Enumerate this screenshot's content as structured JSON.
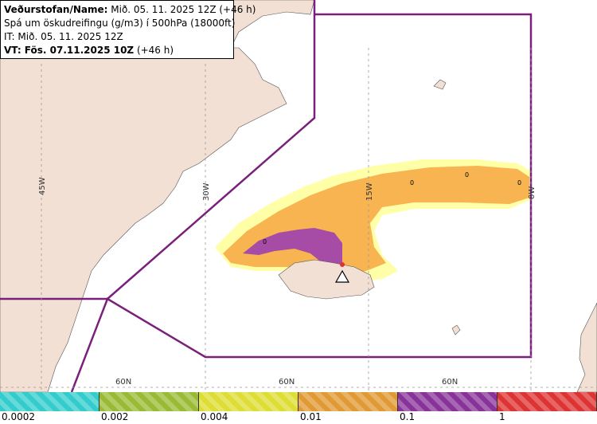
{
  "header": {
    "line1_bold": "Veðurstofan/Name:",
    "line1_rest": " Mið. 05. 11. 2025 12Z (+46 h)",
    "line2": "Spá um öskudreifingu (g/m3) í 500hPa (18000ft)",
    "line3": "IT: Mið. 05. 11. 2025 12Z",
    "line4_bold": "VT: Fös. 07.11.2025 10Z",
    "line4_rest": " (+46 h)"
  },
  "map": {
    "land_color": "#f2e0d4",
    "sea_color": "#ffffff",
    "boundary_color": "#7a1f7a",
    "meridian_labels": [
      "45W",
      "30W",
      "15W",
      "0W"
    ],
    "parallel_labels": [
      "60N",
      "60N",
      "60N"
    ],
    "zero_marks": [
      "0",
      "0",
      "0",
      "0"
    ],
    "volcano_icon": "triangle-volcano-icon"
  },
  "legend": {
    "colors": [
      "#33cccc",
      "#99bb33",
      "#dddd33",
      "#e09933",
      "#883399",
      "#dd3333"
    ],
    "labels": [
      "0.0002",
      "0.002",
      "0.004",
      "0.01",
      "0.1",
      "1"
    ]
  }
}
